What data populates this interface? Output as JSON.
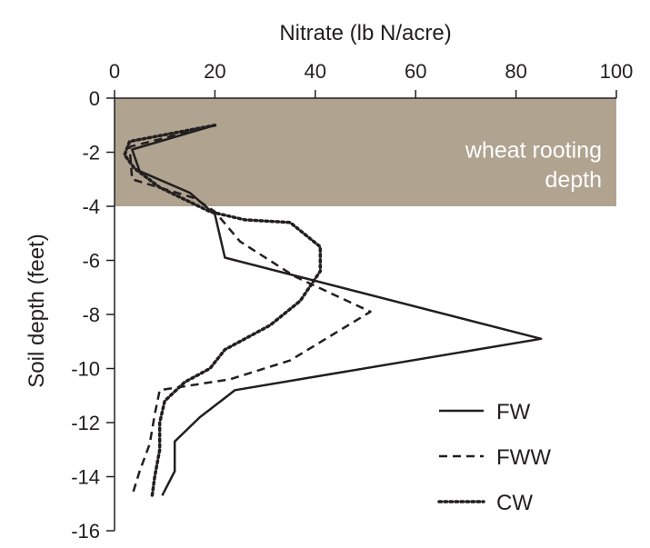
{
  "chart_data": {
    "type": "line",
    "orientation": "depth-profile",
    "xlabel": "Nitrate (lb N/acre)",
    "ylabel": "Soil depth (feet)",
    "xlim": [
      0,
      100
    ],
    "ylim": [
      -16,
      0
    ],
    "x_ticks": [
      "0",
      "20",
      "40",
      "60",
      "80",
      "100"
    ],
    "y_ticks": [
      "0",
      "-2",
      "-4",
      "-6",
      "-8",
      "-10",
      "-12",
      "-14",
      "-16"
    ],
    "x_axis_position": "top",
    "grid": false,
    "legend_position": "bottom-right",
    "annotation": {
      "lines": [
        "wheat rooting",
        "depth"
      ],
      "depth_range": [
        0,
        -4
      ],
      "color": "#b0a390"
    },
    "series": [
      {
        "name": "FW",
        "style": "solid",
        "points": [
          {
            "x": 20,
            "y": -1
          },
          {
            "x": 3.5,
            "y": -1.9
          },
          {
            "x": 5,
            "y": -2.7
          },
          {
            "x": 15,
            "y": -3.5
          },
          {
            "x": 20,
            "y": -4.3
          },
          {
            "x": 22,
            "y": -5.9
          },
          {
            "x": 85,
            "y": -8.9
          },
          {
            "x": 24,
            "y": -10.8
          },
          {
            "x": 17,
            "y": -11.8
          },
          {
            "x": 12,
            "y": -12.7
          },
          {
            "x": 12,
            "y": -13.8
          },
          {
            "x": 9.5,
            "y": -14.7
          }
        ]
      },
      {
        "name": "FWW",
        "style": "dashed",
        "points": [
          {
            "x": 20,
            "y": -1
          },
          {
            "x": 3,
            "y": -1.8
          },
          {
            "x": 3.5,
            "y": -3
          },
          {
            "x": 16,
            "y": -3.7
          },
          {
            "x": 20,
            "y": -4.2
          },
          {
            "x": 25,
            "y": -5.3
          },
          {
            "x": 36,
            "y": -6.6
          },
          {
            "x": 51,
            "y": -7.9
          },
          {
            "x": 35,
            "y": -9.7
          },
          {
            "x": 23,
            "y": -10.4
          },
          {
            "x": 9,
            "y": -10.8
          },
          {
            "x": 8,
            "y": -11.7
          },
          {
            "x": 7,
            "y": -12.8
          },
          {
            "x": 5,
            "y": -13.8
          },
          {
            "x": 3.5,
            "y": -14.7
          }
        ]
      },
      {
        "name": "CW",
        "style": "dotted",
        "points": [
          {
            "x": 20,
            "y": -1
          },
          {
            "x": 3,
            "y": -1.6
          },
          {
            "x": 2,
            "y": -2.1
          },
          {
            "x": 4,
            "y": -2.6
          },
          {
            "x": 9,
            "y": -3.3
          },
          {
            "x": 19,
            "y": -4.2
          },
          {
            "x": 26,
            "y": -4.5
          },
          {
            "x": 35,
            "y": -4.6
          },
          {
            "x": 41,
            "y": -5.5
          },
          {
            "x": 41,
            "y": -6.4
          },
          {
            "x": 37,
            "y": -7.5
          },
          {
            "x": 31,
            "y": -8.4
          },
          {
            "x": 22,
            "y": -9.3
          },
          {
            "x": 19,
            "y": -10.0
          },
          {
            "x": 14,
            "y": -10.5
          },
          {
            "x": 10,
            "y": -11.2
          },
          {
            "x": 9,
            "y": -12.0
          },
          {
            "x": 9,
            "y": -13.0
          },
          {
            "x": 8,
            "y": -14.0
          },
          {
            "x": 7.5,
            "y": -14.7
          }
        ]
      }
    ]
  }
}
